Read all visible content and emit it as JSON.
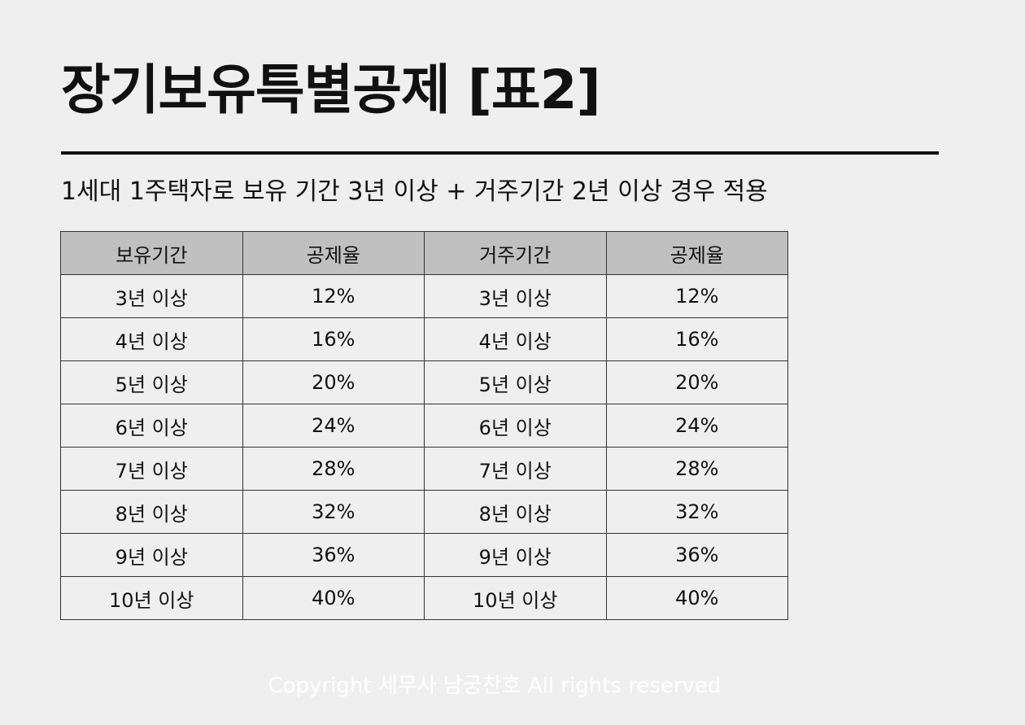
{
  "title": "장기보유특별공제 [표2]",
  "subtitle": "1세대 1주택자로 보유 기간 3년 이상 + 거주기간 2년 이상 경우 적용",
  "table": {
    "headers": [
      "보유기간",
      "공제율",
      "거주기간",
      "공제율"
    ],
    "rows": [
      [
        "3년 이상",
        "12%",
        "3년 이상",
        "12%"
      ],
      [
        "4년 이상",
        "16%",
        "4년 이상",
        "16%"
      ],
      [
        "5년 이상",
        "20%",
        "5년 이상",
        "20%"
      ],
      [
        "6년 이상",
        "24%",
        "6년 이상",
        "24%"
      ],
      [
        "7년 이상",
        "28%",
        "7년 이상",
        "28%"
      ],
      [
        "8년 이상",
        "32%",
        "8년 이상",
        "32%"
      ],
      [
        "9년 이상",
        "36%",
        "9년 이상",
        "36%"
      ],
      [
        "10년 이상",
        "40%",
        "10년 이상",
        "40%"
      ]
    ]
  },
  "footer": "Copyright 세무사 남궁찬호 All rights reserved",
  "colors": {
    "background": "#efefef",
    "header_fill": "#c0c0c0",
    "text": "#111111",
    "footer_text": "#ffffff"
  }
}
